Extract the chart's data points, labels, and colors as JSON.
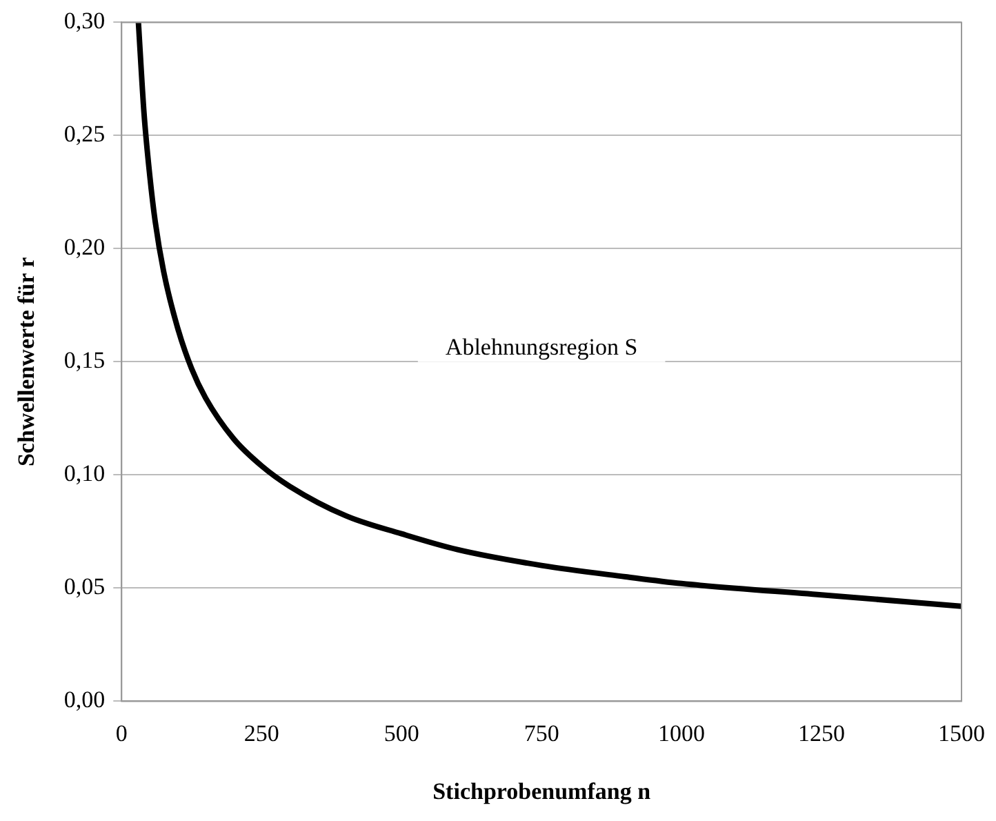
{
  "chart_data": {
    "type": "line",
    "xlabel": "Stichprobenumfang n",
    "ylabel": "Schwellenwerte für r",
    "x": [
      30,
      40,
      50,
      60,
      75,
      100,
      125,
      150,
      200,
      250,
      300,
      400,
      500,
      600,
      750,
      900,
      1000,
      1250,
      1500
    ],
    "values": [
      0.3,
      0.26,
      0.233,
      0.212,
      0.19,
      0.165,
      0.147,
      0.134,
      0.116,
      0.104,
      0.095,
      0.082,
      0.074,
      0.067,
      0.06,
      0.055,
      0.052,
      0.047,
      0.042
    ],
    "color": "#000000",
    "marker": "none",
    "line_style": "solid",
    "grid": "y",
    "xlim": [
      0,
      1500
    ],
    "xticks": [
      0,
      250,
      500,
      750,
      1000,
      1250,
      1500
    ],
    "ylim": [
      0,
      0.3
    ],
    "yticks": [
      {
        "value": 0,
        "label": "0,00"
      },
      {
        "value": 0.05,
        "label": "0,05"
      },
      {
        "value": 0.1,
        "label": "0,10"
      },
      {
        "value": 0.15,
        "label": "0,15"
      },
      {
        "value": 0.2,
        "label": "0,20"
      },
      {
        "value": 0.25,
        "label": "0,25"
      },
      {
        "value": 0.3,
        "label": "0,30"
      }
    ],
    "annotations": [
      "Ablehnungsregion S"
    ]
  }
}
